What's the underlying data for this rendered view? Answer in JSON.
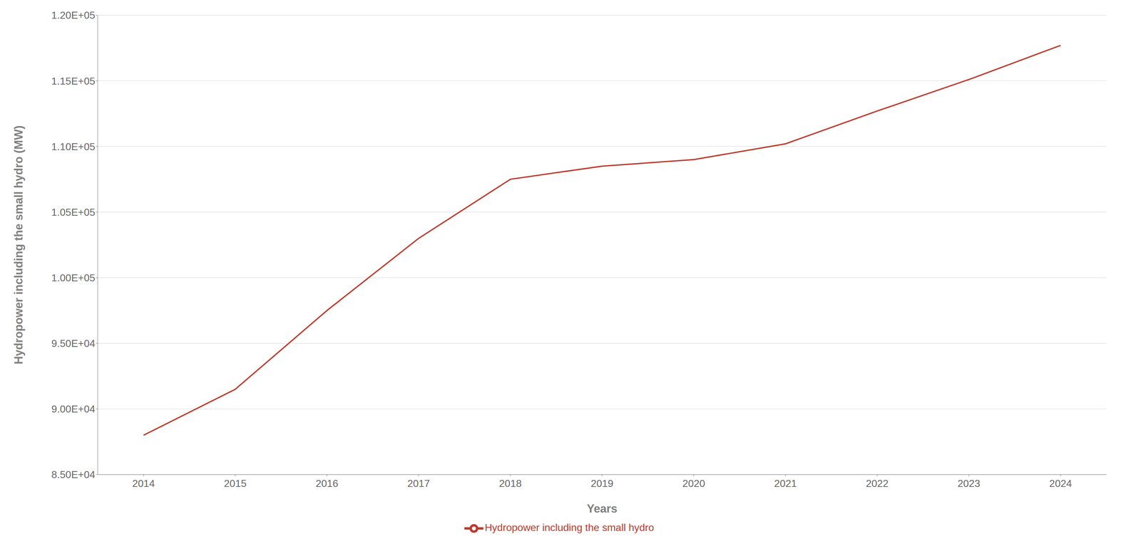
{
  "chart_data": {
    "type": "line",
    "x": [
      2014,
      2015,
      2016,
      2017,
      2018,
      2019,
      2020,
      2021,
      2022,
      2023,
      2024
    ],
    "series": [
      {
        "name": "Hydropower including the small hydro",
        "color": "#c0392b",
        "values": [
          88000,
          91500,
          97500,
          103000,
          107500,
          108500,
          109000,
          110200,
          112700,
          115100,
          117700
        ]
      }
    ],
    "xlabel": "Years",
    "ylabel": "Hydropower including the small hydro (MW)",
    "xlim": [
      2013.5,
      2024.5
    ],
    "xticks": [
      2014,
      2015,
      2016,
      2017,
      2018,
      2019,
      2020,
      2021,
      2022,
      2023,
      2024
    ],
    "ylim": [
      85000,
      120000
    ],
    "yticks": [
      {
        "value": 85000,
        "label": "8.50E+04"
      },
      {
        "value": 90000,
        "label": "9.00E+04"
      },
      {
        "value": 95000,
        "label": "9.50E+04"
      },
      {
        "value": 100000,
        "label": "1.00E+05"
      },
      {
        "value": 105000,
        "label": "1.05E+05"
      },
      {
        "value": 110000,
        "label": "1.10E+05"
      },
      {
        "value": 115000,
        "label": "1.15E+05"
      },
      {
        "value": 120000,
        "label": "1.20E+05"
      }
    ],
    "grid": true,
    "legend": "bottom"
  }
}
